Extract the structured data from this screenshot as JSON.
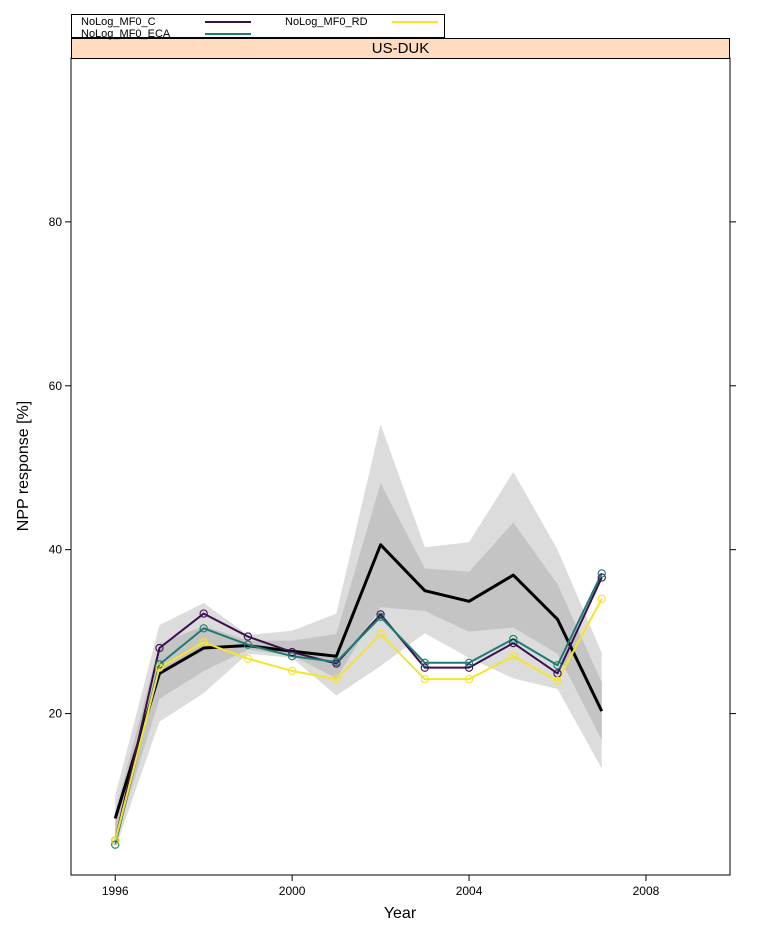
{
  "legend": {
    "items": [
      {
        "label": "NoLog_MF0_C",
        "color": "#3b0f4f"
      },
      {
        "label": "NoLog_MF0_ECA",
        "color": "#1f7a72"
      },
      {
        "label": "NoLog_MF0_RD",
        "color": "#f5e52a"
      }
    ]
  },
  "strip": {
    "label": "US-DUK"
  },
  "chart_data": {
    "type": "line",
    "title": "US-DUK",
    "xlabel": "Year",
    "ylabel": "NPP response [%]",
    "xlim": [
      1995.0,
      2009.9
    ],
    "ylim": [
      0.3,
      100.0
    ],
    "xticks": [
      1996,
      2000,
      2004,
      2008
    ],
    "yticks": [
      20,
      40,
      60,
      80
    ],
    "grid": false,
    "legend_position": "top",
    "x": [
      1996,
      1997,
      1998,
      1999,
      2000,
      2001,
      2002,
      2003,
      2004,
      2005,
      2006,
      2007
    ],
    "bands": [
      {
        "color": "#dcdcdc",
        "upper": [
          10.0,
          30.8,
          33.5,
          29.6,
          30.1,
          32.2,
          55.3,
          40.3,
          40.9,
          49.5,
          40.0,
          27.4
        ],
        "lower": [
          3.5,
          19.0,
          22.5,
          27.3,
          26.8,
          22.2,
          25.8,
          29.8,
          26.8,
          24.3,
          23.0,
          13.3
        ]
      },
      {
        "color": "#c4c4c4",
        "upper": [
          8.0,
          28.5,
          30.7,
          28.9,
          28.9,
          29.7,
          48.1,
          37.7,
          37.3,
          43.3,
          35.8,
          23.8
        ],
        "lower": [
          4.5,
          21.8,
          25.2,
          27.8,
          27.1,
          24.3,
          33.0,
          32.5,
          30.0,
          30.5,
          27.3,
          16.8
        ]
      }
    ],
    "series": [
      {
        "color": "#000000",
        "markers": false,
        "width": 3,
        "values": [
          7.2,
          24.9,
          28.0,
          28.3,
          27.6,
          27.0,
          40.6,
          35.0,
          33.7,
          36.9,
          31.5,
          20.3
        ]
      },
      {
        "name": "NoLog_MF0_C",
        "color": "#3b0f4f",
        "markers": true,
        "width": 2,
        "values": [
          4.5,
          28.0,
          32.2,
          29.4,
          27.5,
          26.1,
          32.1,
          25.6,
          25.6,
          28.6,
          24.9,
          36.6
        ]
      },
      {
        "name": "NoLog_MF0_ECA",
        "color": "#1f7a72",
        "markers": true,
        "width": 2,
        "values": [
          4.0,
          26.0,
          30.4,
          28.4,
          27.0,
          26.3,
          31.8,
          26.2,
          26.2,
          29.1,
          25.9,
          37.1
        ]
      },
      {
        "name": "NoLog_MF0_RD",
        "color": "#f5e52a",
        "markers": true,
        "width": 2,
        "values": [
          4.5,
          25.6,
          28.7,
          26.7,
          25.2,
          24.2,
          29.7,
          24.2,
          24.2,
          27.0,
          24.0,
          34.0
        ]
      }
    ]
  }
}
